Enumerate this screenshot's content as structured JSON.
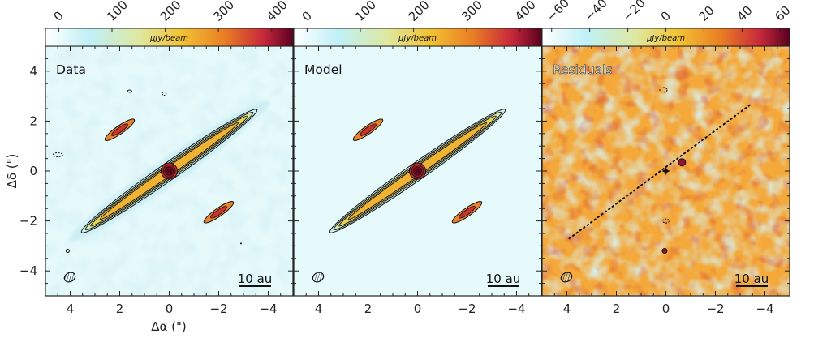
{
  "figure": {
    "y_axis_label": "Δδ (\")",
    "x_axis_label": "Δα (\")",
    "scale_bar_label": "10 au",
    "colorbar_unit": "μJy/beam"
  },
  "panels": [
    {
      "id": "data",
      "title": "Data",
      "colorbar_ticks": [
        "0",
        "100",
        "200",
        "300",
        "400"
      ],
      "colorbar_range": [
        -25,
        440
      ]
    },
    {
      "id": "model",
      "title": "Model",
      "colorbar_ticks": [
        "0",
        "100",
        "200",
        "300",
        "400"
      ],
      "colorbar_range": [
        -25,
        440
      ]
    },
    {
      "id": "residuals",
      "title": "Residuals",
      "colorbar_ticks": [
        "−60",
        "−40",
        "−20",
        "0",
        "20",
        "40",
        "60"
      ],
      "colorbar_range": [
        -65,
        65
      ]
    }
  ],
  "x_ticks": [
    "4",
    "2",
    "0",
    "−2",
    "−4"
  ],
  "y_ticks": [
    "4",
    "2",
    "0",
    "−2",
    "−4"
  ],
  "colors": {
    "cmap_low": "#e6f9fb",
    "cmap_mid": "#f2c233",
    "cmap_high": "#5a0020",
    "residual_bg": "#f4a93a",
    "contour": "#111111"
  }
}
